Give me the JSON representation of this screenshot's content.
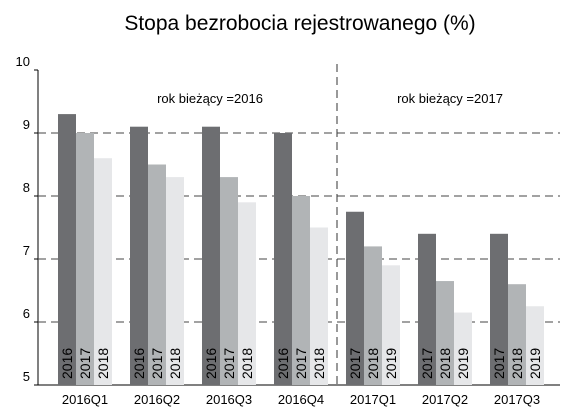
{
  "chart_data": {
    "type": "bar",
    "title": "Stopa bezrobocia rejestrowanego (%)",
    "categories": [
      "2016Q1",
      "2016Q2",
      "2016Q3",
      "2016Q4",
      "2017Q1",
      "2017Q2",
      "2017Q3"
    ],
    "series": [
      {
        "color": "#6d6e71",
        "values": [
          9.3,
          9.1,
          9.1,
          9.0,
          7.75,
          7.4,
          7.4
        ],
        "labels": [
          "2016",
          "2016",
          "2016",
          "2016",
          "2017",
          "2017",
          "2017"
        ]
      },
      {
        "color": "#b1b4b6",
        "values": [
          9.0,
          8.5,
          8.3,
          8.0,
          7.2,
          6.65,
          6.6
        ],
        "labels": [
          "2017",
          "2017",
          "2017",
          "2017",
          "2018",
          "2018",
          "2018"
        ]
      },
      {
        "color": "#e6e7e9",
        "values": [
          8.6,
          8.3,
          7.9,
          7.5,
          6.9,
          6.15,
          6.25
        ],
        "labels": [
          "2018",
          "2018",
          "2018",
          "2018",
          "2019",
          "2019",
          "2019"
        ]
      }
    ],
    "annotations": [
      "rok bieżący =2016",
      "rok bieżący =2017"
    ],
    "ylim": [
      5,
      10
    ],
    "yticks": [
      5,
      6,
      7,
      8,
      9,
      10
    ],
    "grid": true
  }
}
